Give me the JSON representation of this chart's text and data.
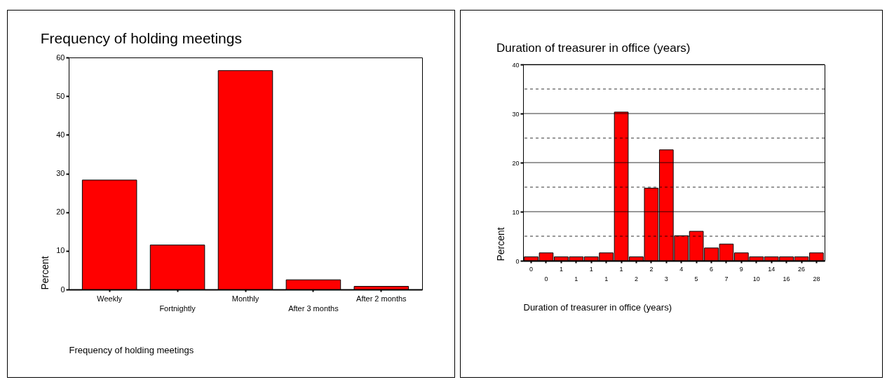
{
  "chart_data": [
    {
      "type": "bar",
      "title": "Frequency of holding meetings",
      "xlabel": "Frequency of holding meetings",
      "ylabel": "Percent",
      "categories": [
        "Weekly",
        "Fortnightly",
        "Monthly",
        "After 3 months",
        "After 2 months"
      ],
      "values": [
        28.3,
        11.5,
        56.6,
        2.5,
        0.8
      ],
      "color": "#ff0000",
      "ylim": [
        0,
        60
      ],
      "yticks": [
        0,
        10,
        20,
        30,
        40,
        50,
        60
      ],
      "grid": false
    },
    {
      "type": "bar",
      "title": "Duration of treasurer in office (years)",
      "xlabel": "Duration of treasurer in office (years)",
      "ylabel": "Percent",
      "categories": [
        "0",
        "0",
        "1",
        "1",
        "1",
        "1",
        "1",
        "2",
        "2",
        "3",
        "4",
        "5",
        "6",
        "7",
        "9",
        "10",
        "14",
        "16",
        "26",
        "28"
      ],
      "values": [
        0.8,
        1.6,
        0.8,
        0.8,
        0.8,
        1.6,
        30.3,
        0.8,
        14.8,
        22.6,
        5.1,
        6.0,
        2.6,
        3.4,
        1.6,
        0.8,
        0.8,
        0.8,
        0.8,
        1.6
      ],
      "color": "#ff0000",
      "ylim": [
        0,
        40
      ],
      "yticks": [
        0,
        {
          "value": 5,
          "label": null
        },
        10,
        {
          "value": 15,
          "label": null
        },
        20,
        {
          "value": 25,
          "label": null
        },
        30,
        {
          "value": 35,
          "label": null
        },
        40
      ],
      "grid": "y"
    }
  ]
}
